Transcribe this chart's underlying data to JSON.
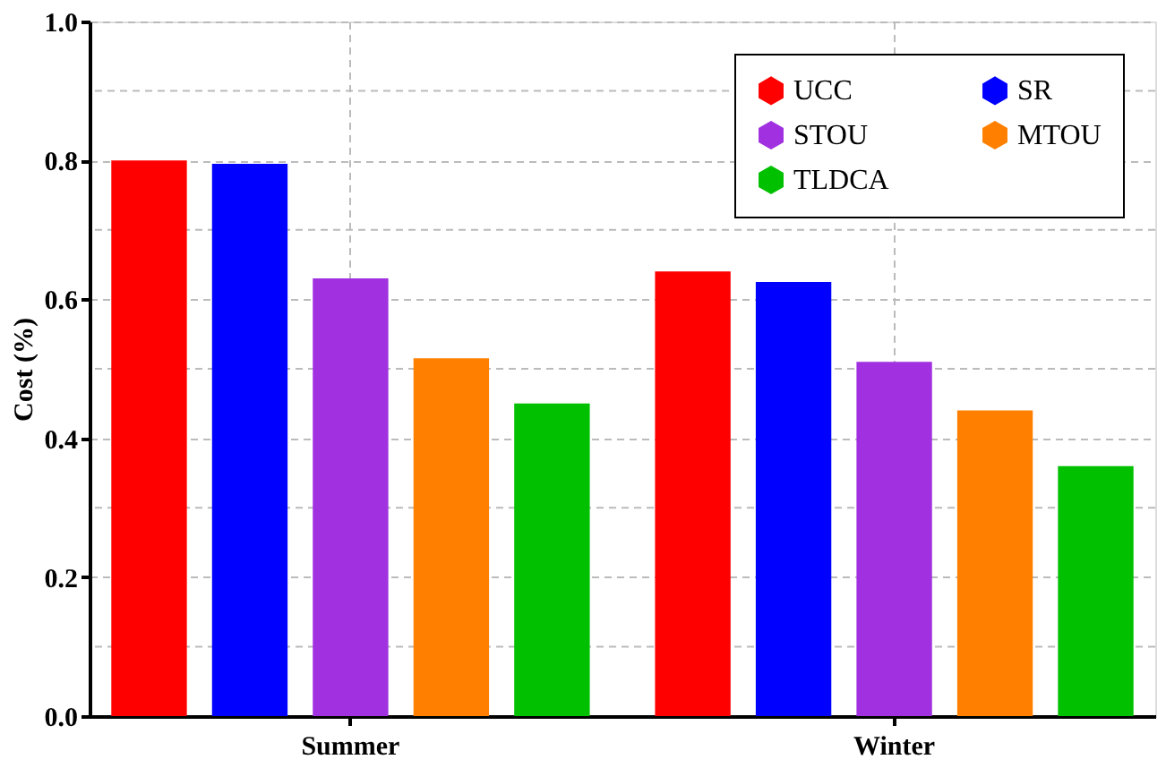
{
  "chart_data": {
    "type": "bar",
    "ylabel": "Cost (%)",
    "categories": [
      "Summer",
      "Winter"
    ],
    "series": [
      {
        "name": "UCC",
        "color": "#ff0000",
        "values": [
          0.8,
          0.64
        ]
      },
      {
        "name": "SR",
        "color": "#0000ff",
        "values": [
          0.795,
          0.625
        ]
      },
      {
        "name": "STOU",
        "color": "#a030e0",
        "values": [
          0.63,
          0.51
        ]
      },
      {
        "name": "MTOU",
        "color": "#ff8000",
        "values": [
          0.515,
          0.44
        ]
      },
      {
        "name": "TLDCA",
        "color": "#00c000",
        "values": [
          0.45,
          0.36
        ]
      }
    ],
    "ylim": [
      0,
      1.0
    ],
    "yticks": [
      {
        "value": 0,
        "label": "0.0"
      },
      {
        "value": 0.1,
        "label": null
      },
      0.2,
      {
        "value": 0.3,
        "label": null
      },
      0.4,
      {
        "value": 0.5,
        "label": null
      },
      0.6,
      {
        "value": 0.7,
        "label": null
      },
      0.8,
      {
        "value": 0.9,
        "label": null
      },
      {
        "value": 1.0,
        "label": "1.0"
      }
    ],
    "grid": true,
    "legend": "top right"
  }
}
